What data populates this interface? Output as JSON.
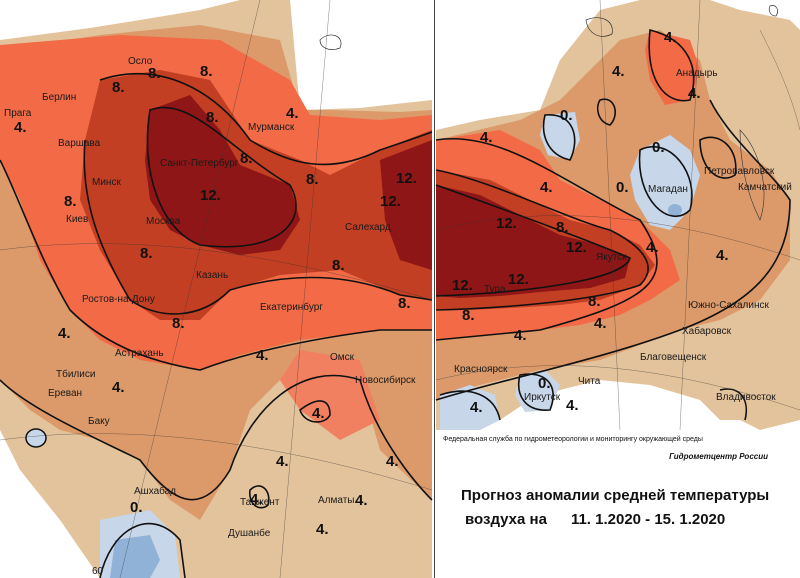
{
  "colors": {
    "background": "#ffffff",
    "anomaly_0_2": "#e3c39c",
    "anomaly_2_4": "#dc9a6a",
    "anomaly_4_8": "#f26a46",
    "anomaly_8_12": "#c23f23",
    "anomaly_12_plus": "#8f1616",
    "anomaly_negative": "#c7d6e8",
    "anomaly_cold_core": "#8fb2d6",
    "isoline": "#111111"
  },
  "isolines": [
    "0.",
    "4.",
    "8.",
    "12."
  ],
  "left_map": {
    "cities": [
      "Осло",
      "Берлин",
      "Прага",
      "Варшава",
      "Минск",
      "Киев",
      "Санкт-Петербург",
      "Мурманск",
      "Москва",
      "Салехард",
      "Казань",
      "Ростов-на-Дону",
      "Екатеринбург",
      "Астрахань",
      "Омск",
      "Новосибирск",
      "Тбилиси",
      "Ереван",
      "Баку",
      "Ашхабад",
      "Ташкент",
      "Алматы",
      "Душанбе"
    ],
    "grid_label": "60"
  },
  "right_map": {
    "cities": [
      "Анадырь",
      "Магадан",
      "Петропавловск",
      "Камчатский",
      "Якутск",
      "Тура",
      "Южно-Сахалинск",
      "Хабаровск",
      "Благовещенск",
      "Красноярск",
      "Чита",
      "Иркутск",
      "Владивосток"
    ]
  },
  "info": {
    "agency": "Федеральная служба по гидрометеорологии и мониторингу окружающей среды",
    "center": "Гидрометцентр России",
    "title_line1": "Прогноз аномалии средней температуры",
    "title_line2": "воздуха на",
    "dates": "11. 1.2020 - 15. 1.2020"
  }
}
